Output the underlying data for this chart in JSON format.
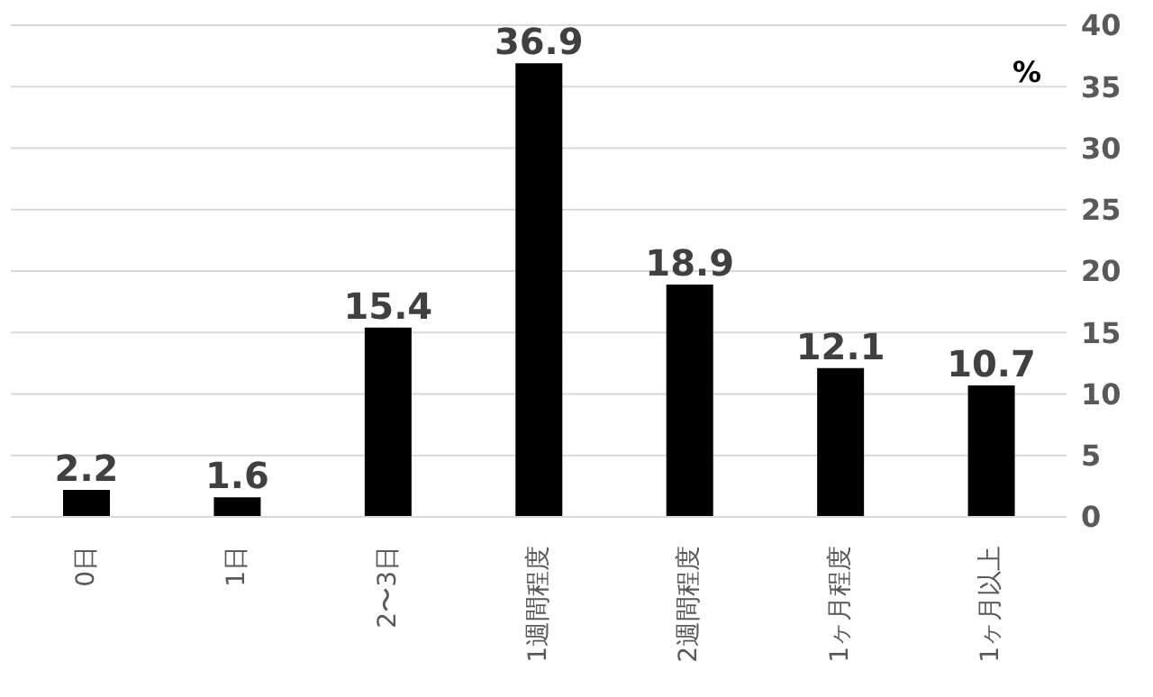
{
  "chart_data": {
    "type": "bar",
    "ylabel": "%",
    "categories": [
      "0日",
      "1日",
      "2〜3日",
      "1週間程度",
      "2週間程度",
      "1ヶ月程度",
      "1ヶ月以上"
    ],
    "values": [
      2.2,
      1.6,
      15.4,
      36.9,
      18.9,
      12.1,
      10.7
    ],
    "color": "#000000",
    "data_labels": true,
    "ylim": [
      0,
      40
    ],
    "yticks": [
      0,
      5,
      10,
      15,
      20,
      25,
      30,
      35,
      40
    ],
    "grid": "y"
  }
}
